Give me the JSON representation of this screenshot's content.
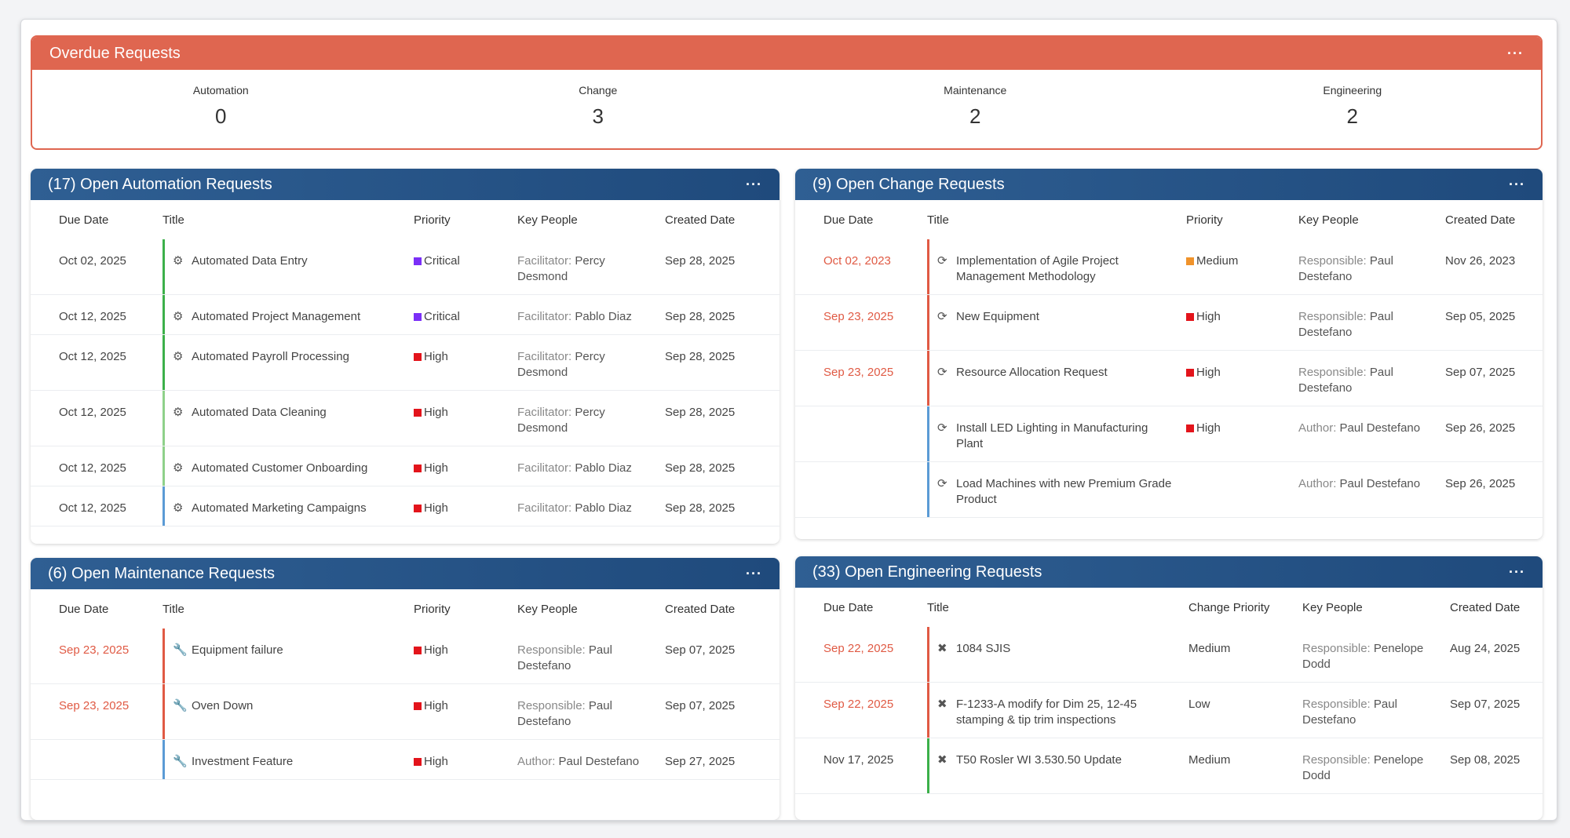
{
  "overdue": {
    "title": "Overdue Requests",
    "menu": "···",
    "stats": [
      {
        "label": "Automation",
        "value": "0"
      },
      {
        "label": "Change",
        "value": "3"
      },
      {
        "label": "Maintenance",
        "value": "2"
      },
      {
        "label": "Engineering",
        "value": "2"
      }
    ]
  },
  "colors": {
    "overdue": "#df6650",
    "header": "#1f4a7c",
    "critical": "#7b2ff7",
    "high": "#e3141b",
    "medium": "#f0932b",
    "green": "#3cb04a",
    "lightblue": "#5b9bd5",
    "red_due": "#e05a44"
  },
  "automation": {
    "title": "(17) Open Automation Requests",
    "menu": "···",
    "cols": [
      "Due Date",
      "Title",
      "Priority",
      "Key People",
      "Created Date"
    ],
    "rows": [
      {
        "due": "Oct 02, 2025",
        "title": "Automated Data Entry",
        "priority": "Critical",
        "role": "Facilitator:",
        "name": " Percy Desmond",
        "created": "Sep 28, 2025"
      },
      {
        "due": "Oct 12, 2025",
        "title": "Automated Project Management",
        "priority": "Critical",
        "role": "Facilitator:",
        "name": " Pablo Diaz",
        "created": "Sep 28, 2025"
      },
      {
        "due": "Oct 12, 2025",
        "title": "Automated Payroll Processing",
        "priority": "High",
        "role": "Facilitator:",
        "name": " Percy Desmond",
        "created": "Sep 28, 2025"
      },
      {
        "due": "Oct 12, 2025",
        "title": "Automated Data Cleaning",
        "priority": "High",
        "role": "Facilitator:",
        "name": " Percy Desmond",
        "created": "Sep 28, 2025"
      },
      {
        "due": "Oct 12, 2025",
        "title": "Automated Customer Onboarding",
        "priority": "High",
        "role": "Facilitator:",
        "name": " Pablo Diaz",
        "created": "Sep 28, 2025"
      },
      {
        "due": "Oct 12, 2025",
        "title": "Automated Marketing Campaigns",
        "priority": "High",
        "role": "Facilitator:",
        "name": " Pablo Diaz",
        "created": "Sep 28, 2025"
      }
    ]
  },
  "change": {
    "title": "(9) Open Change Requests",
    "menu": "···",
    "cols": [
      "Due Date",
      "Title",
      "Priority",
      "Key People",
      "Created Date"
    ],
    "rows": [
      {
        "due": "Oct 02, 2023",
        "title": "Implementation of Agile Project Management Methodology",
        "priority": "Medium",
        "role": "Responsible:",
        "name": " Paul Destefano",
        "created": "Nov 26, 2023"
      },
      {
        "due": "Sep 23, 2025",
        "title": "New Equipment",
        "priority": "High",
        "role": "Responsible:",
        "name": " Paul Destefano",
        "created": "Sep 05, 2025"
      },
      {
        "due": "Sep 23, 2025",
        "title": "Resource Allocation Request",
        "priority": "High",
        "role": "Responsible:",
        "name": " Paul Destefano",
        "created": "Sep 07, 2025"
      },
      {
        "due": "",
        "title": "Install LED Lighting in Manufacturing Plant",
        "priority": "High",
        "role": "Author:",
        "name": " Paul Destefano",
        "created": "Sep 26, 2025"
      },
      {
        "due": "",
        "title": "Load Machines with new Premium Grade Product",
        "priority": "",
        "role": "Author:",
        "name": " Paul Destefano",
        "created": "Sep 26, 2025"
      }
    ]
  },
  "maintenance": {
    "title": "(6) Open Maintenance Requests",
    "menu": "···",
    "cols": [
      "Due Date",
      "Title",
      "Priority",
      "Key People",
      "Created Date"
    ],
    "rows": [
      {
        "due": "Sep 23, 2025",
        "title": "Equipment failure",
        "priority": "High",
        "role": "Responsible:",
        "name": " Paul Destefano",
        "created": "Sep 07, 2025"
      },
      {
        "due": "Sep 23, 2025",
        "title": "Oven Down",
        "priority": "High",
        "role": "Responsible:",
        "name": " Paul Destefano",
        "created": "Sep 07, 2025"
      },
      {
        "due": "",
        "title": "Investment Feature",
        "priority": "High",
        "role": "Author:",
        "name": " Paul Destefano",
        "created": "Sep 27, 2025"
      }
    ]
  },
  "engineering": {
    "title": "(33) Open Engineering Requests",
    "menu": "···",
    "cols": [
      "Due Date",
      "Title",
      "Change Priority",
      "Key People",
      "Created Date"
    ],
    "rows": [
      {
        "due": "Sep 22, 2025",
        "title": "1084 SJIS",
        "priority": "Medium",
        "role": "Responsible:",
        "name": " Penelope Dodd",
        "created": "Aug 24, 2025"
      },
      {
        "due": "Sep 22, 2025",
        "title": "F-1233-A modify for Dim 25, 12-45 stamping & tip trim inspections",
        "priority": "Low",
        "role": "Responsible:",
        "name": " Paul Destefano",
        "created": "Sep 07, 2025"
      },
      {
        "due": "Nov 17, 2025",
        "title": "T50 Rosler WI 3.530.50 Update",
        "priority": "Medium",
        "role": "Responsible:",
        "name": " Penelope Dodd",
        "created": "Sep 08, 2025"
      }
    ]
  }
}
